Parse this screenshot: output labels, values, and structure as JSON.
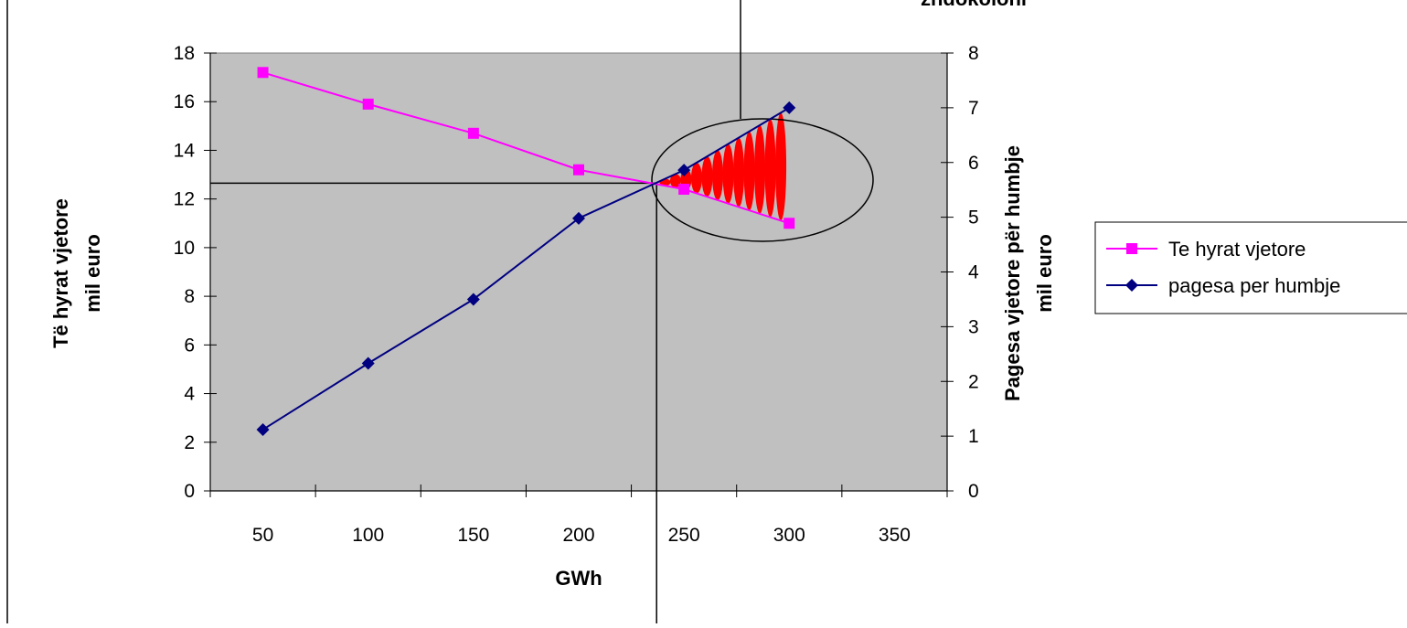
{
  "chart_data": {
    "type": "line",
    "title": "",
    "top_annotation": "zhdokoloni",
    "xlabel": "GWh",
    "ylabel_left": [
      "Të hyrat vjetore",
      "mil euro"
    ],
    "ylabel_right": [
      "Pagesa vjetore për humbje",
      "mil euro"
    ],
    "x_ticks": [
      50,
      100,
      150,
      200,
      250,
      300,
      350
    ],
    "x_range": [
      25,
      375
    ],
    "ylim_left": [
      0,
      18
    ],
    "ylim_right": [
      0,
      8
    ],
    "y_ticks_left": [
      0,
      2,
      4,
      6,
      8,
      10,
      12,
      14,
      16,
      18
    ],
    "y_ticks_right": [
      0,
      1,
      2,
      3,
      4,
      5,
      6,
      7,
      8
    ],
    "grid": false,
    "legend_position": "right",
    "series": [
      {
        "name": "Te hyrat vjetore",
        "axis": "left",
        "color": "#ff00ff",
        "marker": "square",
        "x": [
          50,
          100,
          150,
          200,
          250,
          300
        ],
        "y": [
          17.2,
          15.9,
          14.7,
          13.2,
          12.4,
          11.0
        ]
      },
      {
        "name": "pagesa per humbje",
        "axis": "right",
        "color": "#000080",
        "marker": "diamond",
        "x": [
          50,
          100,
          150,
          200,
          250,
          300
        ],
        "y": [
          1.12,
          2.33,
          3.5,
          4.98,
          5.86,
          7.0
        ]
      }
    ],
    "crossover": {
      "x": 237,
      "y_left": 12.65
    },
    "plot_color": "#c0c0c0",
    "highlight_color": "#ff0000"
  }
}
